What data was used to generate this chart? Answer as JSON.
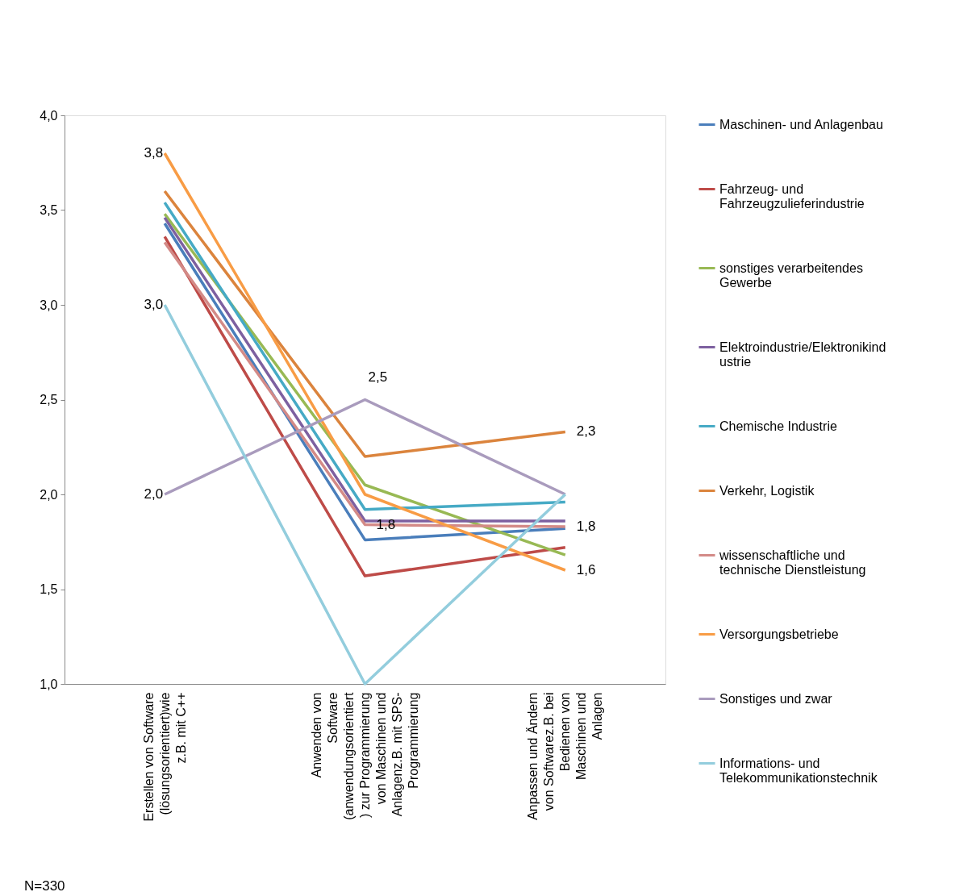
{
  "chart_data": {
    "type": "line",
    "categories": [
      "Erstellen von Software\n(lösungsorientiert)wie\nz.B. mit C++",
      "Anwenden von\nSoftware\n(anwendungsorientiert\n) zur Programmierung\nvon Maschinen und\nAnlagenz.B. mit SPS-\nProgrammierung",
      "Anpassen und Ändern\nvon Softwarez.B. bei\nBedienen von\nMaschinen und\nAnlagen"
    ],
    "series": [
      {
        "name": "Maschinen- und Anlagenbau",
        "color": "#4a7ebb",
        "values": [
          3.43,
          1.76,
          1.82
        ]
      },
      {
        "name": "Fahrzeug- und\nFahrzeugzulieferindustrie",
        "color": "#be4b48",
        "values": [
          3.36,
          1.57,
          1.72
        ]
      },
      {
        "name": "sonstiges verarbeitendes\nGewerbe",
        "color": "#98b954",
        "values": [
          3.48,
          2.05,
          1.68
        ]
      },
      {
        "name": "Elektroindustrie/Elektronikind\nustrie",
        "color": "#7d60a0",
        "values": [
          3.46,
          1.86,
          1.86
        ]
      },
      {
        "name": "Chemische Industrie",
        "color": "#46aac5",
        "values": [
          3.54,
          1.92,
          1.96
        ]
      },
      {
        "name": "Verkehr, Logistik",
        "color": "#db843d",
        "values": [
          3.6,
          2.2,
          2.33
        ],
        "value_labels": [
          null,
          null,
          "2,3"
        ]
      },
      {
        "name": "wissenschaftliche und\ntechnische Dienstleistung",
        "color": "#d38a87",
        "values": [
          3.33,
          1.84,
          1.83
        ],
        "value_labels": [
          null,
          "1,8",
          "1,8"
        ]
      },
      {
        "name": "Versorgungsbetriebe",
        "color": "#f89c45",
        "values": [
          3.8,
          2.0,
          1.6
        ],
        "value_labels": [
          "3,8",
          null,
          "1,6"
        ]
      },
      {
        "name": "Sonstiges und zwar",
        "color": "#a99bbd",
        "values": [
          2.0,
          2.5,
          2.0
        ],
        "value_labels": [
          "2,0",
          "2,5",
          null
        ]
      },
      {
        "name": "Informations- und\nTelekommunikationstechnik",
        "color": "#93cddd",
        "values": [
          3.0,
          1.0,
          2.0
        ],
        "value_labels": [
          "3,0",
          null,
          null
        ]
      }
    ],
    "ylim": [
      1.0,
      4.0
    ],
    "yticks": [
      {
        "value": 1.0,
        "label": "1,0"
      },
      {
        "value": 1.5,
        "label": "1,5"
      },
      {
        "value": 2.0,
        "label": "2,0"
      },
      {
        "value": 2.5,
        "label": "2,5"
      },
      {
        "value": 3.0,
        "label": "3,0"
      },
      {
        "value": 3.5,
        "label": "3,5"
      },
      {
        "value": 4.0,
        "label": "4,0"
      }
    ],
    "grid": false,
    "legend": "right",
    "marker": "none",
    "line_style": "solid",
    "annotations": [
      "N=330"
    ]
  }
}
